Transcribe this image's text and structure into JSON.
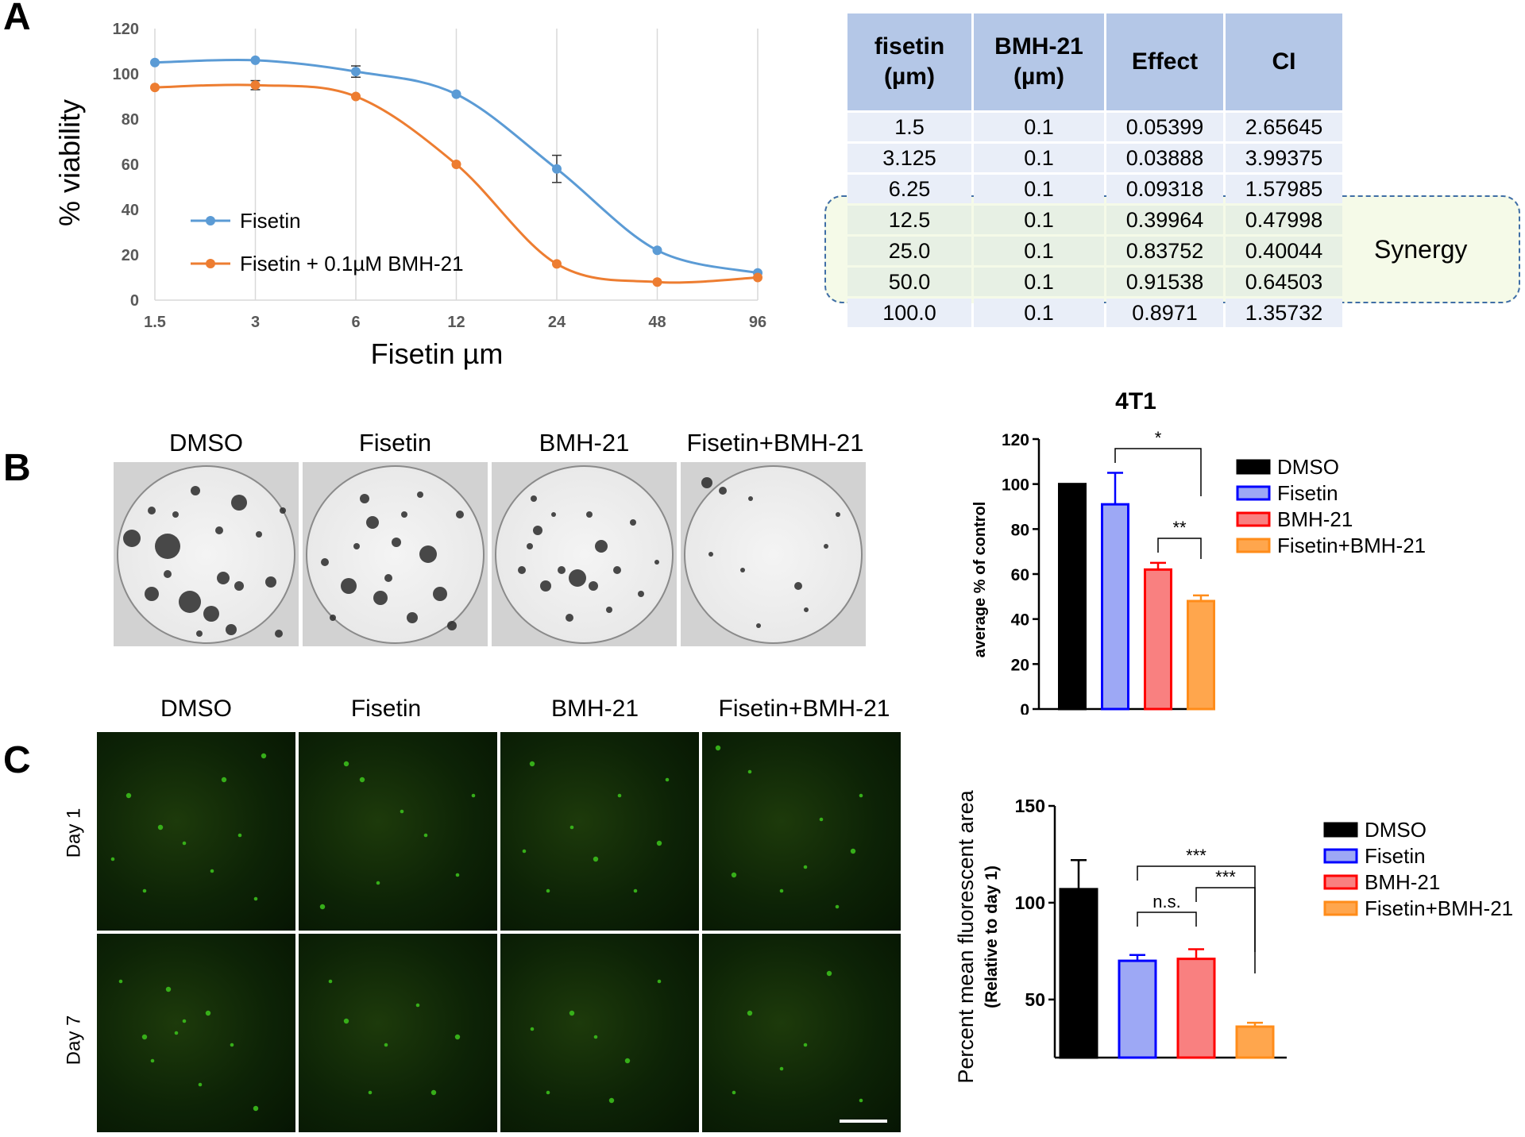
{
  "panel_labels": {
    "a": "A",
    "b": "B",
    "c": "C"
  },
  "colors": {
    "blue": "#5b9bd5",
    "orange": "#ed7d31",
    "black": "#000000",
    "bar_blue": "#0000ff",
    "bar_blue_fill": "#9da8f5",
    "bar_red": "#ff0000",
    "bar_red_fill": "#f98080",
    "bar_orange": "#ff8c1a",
    "bar_orange_fill": "#ffa64d",
    "green": "#39b51a"
  },
  "chart_data": [
    {
      "type": "line",
      "title": "",
      "xlabel": "Fisetin µm",
      "ylabel": "% viability",
      "x": [
        "1.5",
        "3",
        "6",
        "12",
        "24",
        "48",
        "96"
      ],
      "ylim": [
        0,
        120
      ],
      "yticks": [
        "0",
        "20",
        "40",
        "60",
        "80",
        "100",
        "120"
      ],
      "series": [
        {
          "name": "Fisetin",
          "values": [
            105,
            106,
            101,
            91,
            58,
            22,
            12
          ],
          "errors": [
            0,
            0,
            2.5,
            0,
            6,
            0,
            0
          ]
        },
        {
          "name": "Fisetin + 0.1µM BMH-21",
          "values": [
            94,
            95,
            90,
            60,
            16,
            8,
            10
          ],
          "errors": [
            0,
            2,
            0,
            0,
            0,
            0,
            0
          ]
        }
      ]
    },
    {
      "type": "table",
      "headers": [
        [
          "fisetin",
          "(µm)"
        ],
        [
          "BMH-21",
          "(µm)"
        ],
        [
          "Effect"
        ],
        [
          "CI"
        ]
      ],
      "rows": [
        [
          "1.5",
          "0.1",
          "0.05399",
          "2.65645"
        ],
        [
          "3.125",
          "0.1",
          "0.03888",
          "3.99375"
        ],
        [
          "6.25",
          "0.1",
          "0.09318",
          "1.57985"
        ],
        [
          "12.5",
          "0.1",
          "0.39964",
          "0.47998"
        ],
        [
          "25.0",
          "0.1",
          "0.83752",
          "0.40044"
        ],
        [
          "50.0",
          "0.1",
          "0.91538",
          "0.64503"
        ],
        [
          "100.0",
          "0.1",
          "0.8971",
          "1.35732"
        ]
      ],
      "annotation": "Synergy"
    },
    {
      "type": "bar",
      "title": "4T1",
      "ylabel": "average % of control",
      "categories": [
        "DMSO",
        "Fisetin",
        "BMH-21",
        "Fisetin+BMH-21"
      ],
      "values": [
        100,
        91,
        62,
        48
      ],
      "errors": [
        0,
        14,
        3,
        2.5
      ],
      "ylim": [
        0,
        120
      ],
      "yticks": [
        "0",
        "20",
        "40",
        "60",
        "80",
        "100",
        "120"
      ],
      "significance": [
        {
          "pair": [
            1,
            3
          ],
          "label": "*"
        },
        {
          "pair": [
            2,
            3
          ],
          "label": "**"
        }
      ],
      "legend": [
        "DMSO",
        "Fisetin",
        "BMH-21",
        "Fisetin+BMH-21"
      ]
    },
    {
      "type": "bar",
      "title": "",
      "ylabel": "Percent mean fluorescent area",
      "ylabel2": "(Relative to day 1)",
      "categories": [
        "DMSO",
        "Fisetin",
        "BMH-21",
        "Fisetin+BMH-21"
      ],
      "values": [
        107,
        70,
        71,
        36
      ],
      "errors": [
        15,
        3,
        5,
        2
      ],
      "ylim": [
        20,
        150
      ],
      "yticks": [
        "50",
        "100",
        "150"
      ],
      "significance": [
        {
          "pair": [
            1,
            2
          ],
          "label": "n.s."
        },
        {
          "pair": [
            2,
            3
          ],
          "label": "***"
        },
        {
          "pair": [
            1,
            3
          ],
          "label": "***"
        }
      ],
      "legend": [
        "DMSO",
        "Fisetin",
        "BMH-21",
        "Fisetin+BMH-21"
      ]
    }
  ],
  "colony_plates": [
    "DMSO",
    "Fisetin",
    "BMH-21",
    "Fisetin+BMH-21"
  ],
  "fluor_columns": [
    "DMSO",
    "Fisetin",
    "BMH-21",
    "Fisetin+BMH-21"
  ],
  "fluor_rows": [
    "Day 1",
    "Day 7"
  ]
}
